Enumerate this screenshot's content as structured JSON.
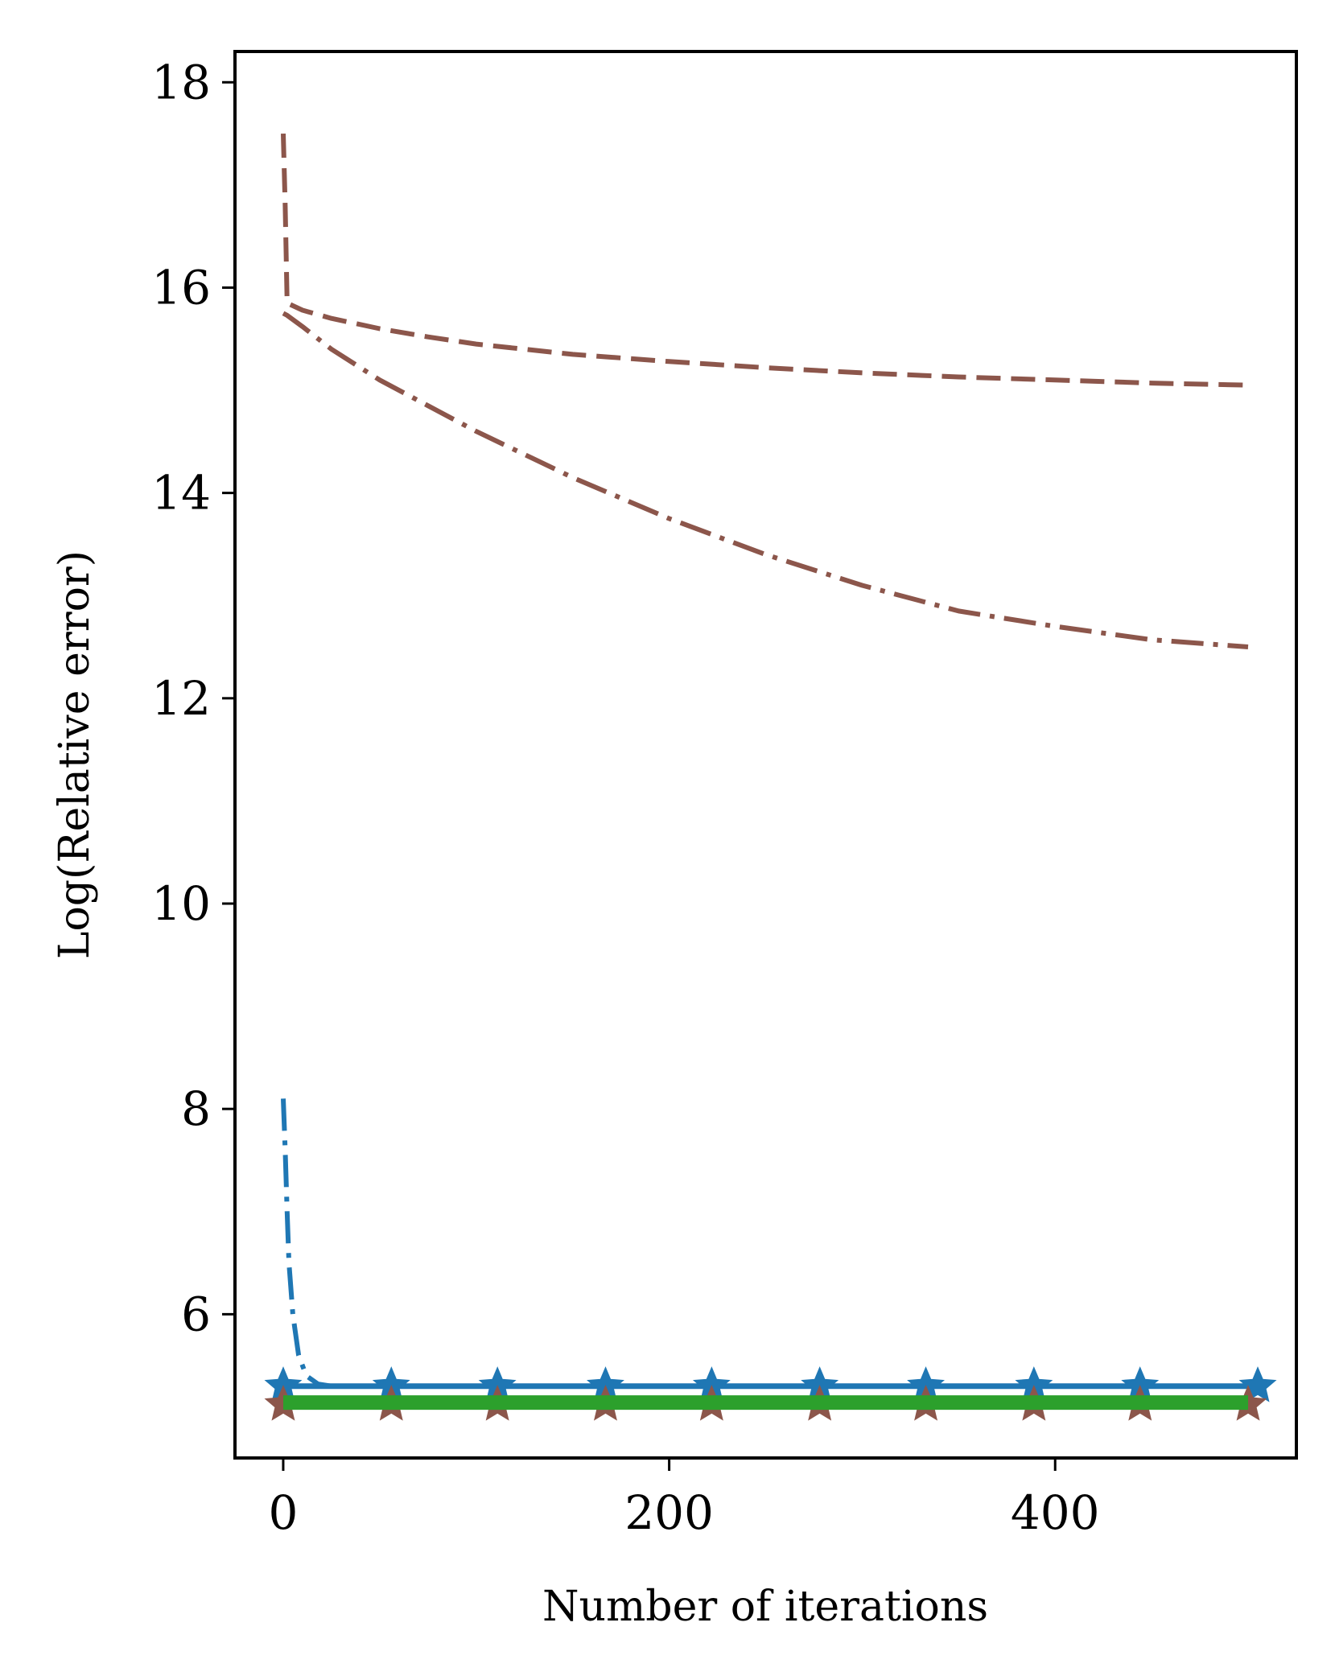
{
  "chart_data": {
    "type": "line",
    "title": "",
    "xlabel": "Number of iterations",
    "ylabel": "Log(Relative error)",
    "xlim": [
      -25,
      525
    ],
    "ylim": [
      4.6,
      18.3
    ],
    "xticks": [
      0,
      200,
      400
    ],
    "yticks": [
      6,
      8,
      10,
      12,
      14,
      16,
      18
    ],
    "grid": false,
    "legend": "none",
    "series": [
      {
        "color": "#8c564b",
        "style": "dashed",
        "x": [
          0,
          1,
          2,
          10,
          25,
          50,
          75,
          100,
          150,
          200,
          250,
          300,
          350,
          400,
          450,
          500
        ],
        "y": [
          17.5,
          16.8,
          15.85,
          15.78,
          15.7,
          15.6,
          15.52,
          15.45,
          15.35,
          15.28,
          15.22,
          15.17,
          15.13,
          15.1,
          15.07,
          15.05
        ]
      },
      {
        "color": "#8c564b",
        "style": "dashdot",
        "x": [
          0,
          2,
          10,
          25,
          50,
          75,
          100,
          150,
          200,
          250,
          300,
          350,
          400,
          450,
          500
        ],
        "y": [
          15.75,
          15.73,
          15.62,
          15.4,
          15.1,
          14.85,
          14.6,
          14.15,
          13.75,
          13.4,
          13.1,
          12.85,
          12.7,
          12.57,
          12.5
        ]
      },
      {
        "color": "#1f77b4",
        "style": "dashdot",
        "x": [
          0,
          1,
          2,
          3,
          5,
          8,
          12,
          18,
          25,
          50,
          100,
          200,
          300,
          400,
          500
        ],
        "y": [
          8.1,
          7.6,
          7.0,
          6.5,
          6.0,
          5.6,
          5.4,
          5.32,
          5.3,
          5.3,
          5.3,
          5.3,
          5.3,
          5.3,
          5.3
        ]
      },
      {
        "color": "#1f77b4",
        "style": "solid-star",
        "x": [
          0,
          56,
          111,
          167,
          222,
          278,
          333,
          389,
          444,
          505
        ],
        "y": [
          5.3,
          5.3,
          5.3,
          5.3,
          5.3,
          5.3,
          5.3,
          5.3,
          5.3,
          5.3
        ]
      },
      {
        "color": "#8c564b",
        "style": "solid-star",
        "x": [
          0,
          56,
          111,
          167,
          222,
          278,
          333,
          389,
          444,
          500
        ],
        "y": [
          5.12,
          5.12,
          5.12,
          5.12,
          5.12,
          5.12,
          5.12,
          5.12,
          5.12,
          5.12
        ]
      },
      {
        "color": "#2ca02c",
        "style": "solid-thick",
        "x": [
          0,
          500
        ],
        "y": [
          5.14,
          5.14
        ]
      }
    ]
  }
}
